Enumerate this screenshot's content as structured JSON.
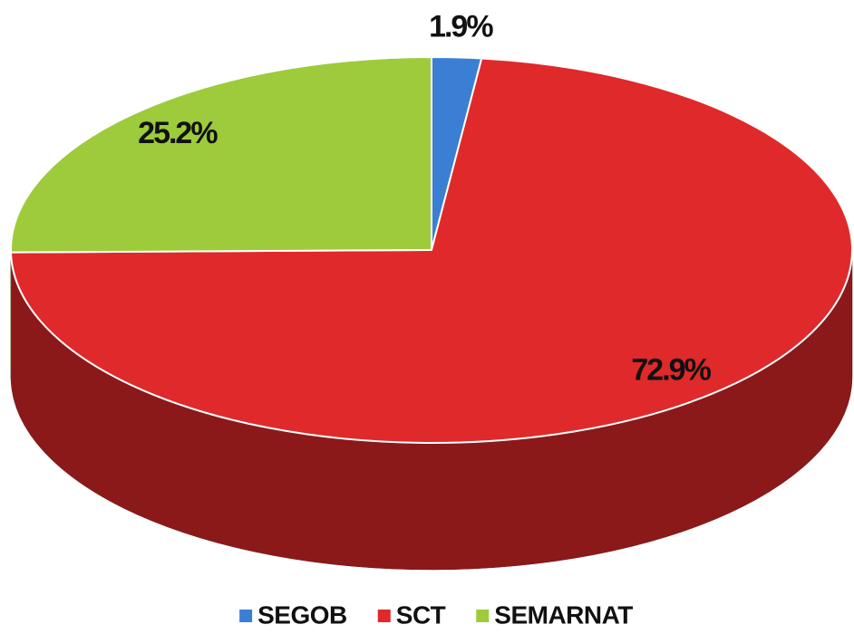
{
  "chart_data": {
    "type": "pie",
    "categories": [
      "SEGOB",
      "SCT",
      "SEMARNAT"
    ],
    "values": [
      1.9,
      72.9,
      25.2
    ],
    "value_labels": [
      "1.9%",
      "72.9%",
      "25.2%"
    ],
    "colors": [
      "#3b7fd4",
      "#e0292a",
      "#9dcb3b"
    ],
    "legend": "bottom"
  }
}
